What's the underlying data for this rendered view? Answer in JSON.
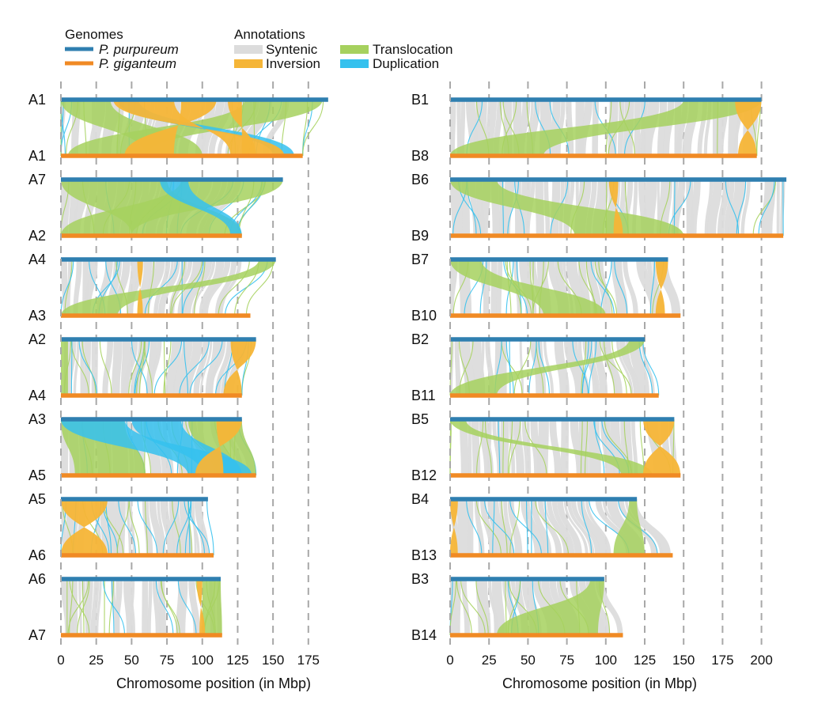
{
  "legend": {
    "genomes_title": "Genomes",
    "genomes": [
      {
        "name": "P. purpureum",
        "color": "#2f7fb0"
      },
      {
        "name": "P. giganteum",
        "color": "#f08a24"
      }
    ],
    "annotations_title": "Annotations",
    "annotations": [
      {
        "name": "Syntenic",
        "color": "#dcdcdc"
      },
      {
        "name": "Inversion",
        "color": "#f5b537"
      },
      {
        "name": "Translocation",
        "color": "#a6d15e"
      },
      {
        "name": "Duplication",
        "color": "#35c1ee"
      }
    ]
  },
  "chart_data": [
    {
      "type": "synteny",
      "xlabel": "Chromosome position (in Mbp)",
      "xlim": [
        0,
        190
      ],
      "ticks": [
        0,
        25,
        50,
        75,
        100,
        125,
        150,
        175
      ],
      "pairs": [
        {
          "top": "A1",
          "bottom": "A1",
          "top_len": 189,
          "bottom_len": 171,
          "inversions": [
            [
              37,
              80,
              120,
              158
            ],
            [
              85,
              110,
              45,
              80
            ],
            [
              118,
              128,
              128,
              138
            ]
          ],
          "translocations": [
            [
              0,
              35,
              60,
              100
            ],
            [
              130,
              185,
              5,
              60
            ]
          ],
          "duplications": [
            [
              40,
              55,
              150,
              165
            ]
          ]
        },
        {
          "top": "A7",
          "bottom": "A2",
          "top_len": 157,
          "bottom_len": 128,
          "inversions": [],
          "translocations": [
            [
              0,
              75,
              50,
              128
            ],
            [
              85,
              157,
              0,
              50
            ]
          ],
          "duplications": [
            [
              70,
              90,
              120,
              128
            ]
          ]
        },
        {
          "top": "A4",
          "bottom": "A3",
          "top_len": 152,
          "bottom_len": 134,
          "inversions": [
            [
              54,
              58,
              54,
              58
            ]
          ],
          "translocations": [
            [
              140,
              152,
              0,
              40
            ]
          ],
          "duplications": []
        },
        {
          "top": "A2",
          "bottom": "A4",
          "top_len": 138,
          "bottom_len": 128,
          "inversions": [
            [
              120,
              138,
              115,
              128
            ]
          ],
          "translocations": [
            [
              0,
              5,
              0,
              5
            ]
          ],
          "duplications": []
        },
        {
          "top": "A3",
          "bottom": "A5",
          "top_len": 128,
          "bottom_len": 138,
          "inversions": [
            [
              110,
              128,
              95,
              115
            ]
          ],
          "translocations": [
            [
              0,
              45,
              10,
              60
            ],
            [
              90,
              128,
              110,
              138
            ]
          ],
          "duplications": [
            [
              0,
              45,
              90,
              135
            ],
            [
              50,
              85,
              100,
              128
            ]
          ]
        },
        {
          "top": "A5",
          "bottom": "A6",
          "top_len": 104,
          "bottom_len": 108,
          "inversions": [
            [
              0,
              33,
              0,
              33
            ]
          ],
          "translocations": [],
          "duplications": []
        },
        {
          "top": "A6",
          "bottom": "A7",
          "top_len": 113,
          "bottom_len": 114,
          "inversions": [
            [
              96,
              100,
              98,
              102
            ]
          ],
          "translocations": [
            [
              100,
              113,
              100,
              114
            ]
          ],
          "duplications": []
        }
      ]
    },
    {
      "type": "synteny",
      "xlabel": "Chromosome position (in Mbp)",
      "xlim": [
        0,
        215
      ],
      "ticks": [
        0,
        25,
        50,
        75,
        100,
        125,
        150,
        175,
        200
      ],
      "pairs": [
        {
          "top": "B1",
          "bottom": "B8",
          "top_len": 200,
          "bottom_len": 197,
          "inversions": [
            [
              183,
              200,
              185,
              197
            ]
          ],
          "translocations": [
            [
              150,
              200,
              0,
              60
            ]
          ],
          "duplications": []
        },
        {
          "top": "B6",
          "bottom": "B9",
          "top_len": 216,
          "bottom_len": 214,
          "inversions": [
            [
              102,
              108,
              105,
              111
            ]
          ],
          "translocations": [
            [
              0,
              30,
              80,
              150
            ]
          ],
          "duplications": []
        },
        {
          "top": "B7",
          "bottom": "B10",
          "top_len": 140,
          "bottom_len": 148,
          "inversions": [
            [
              132,
              140,
              132,
              138
            ]
          ],
          "translocations": [
            [
              0,
              20,
              60,
              100
            ]
          ],
          "duplications": []
        },
        {
          "top": "B2",
          "bottom": "B11",
          "top_len": 125,
          "bottom_len": 134,
          "inversions": [],
          "translocations": [
            [
              115,
              125,
              0,
              30
            ]
          ],
          "duplications": []
        },
        {
          "top": "B5",
          "bottom": "B12",
          "top_len": 144,
          "bottom_len": 148,
          "inversions": [
            [
              124,
              144,
              124,
              148
            ]
          ],
          "translocations": [
            [
              0,
              10,
              110,
              130
            ]
          ],
          "duplications": []
        },
        {
          "top": "B4",
          "bottom": "B13",
          "top_len": 120,
          "bottom_len": 143,
          "inversions": [
            [
              0,
              5,
              0,
              5
            ]
          ],
          "translocations": [
            [
              115,
              120,
              105,
              125
            ]
          ],
          "duplications": []
        },
        {
          "top": "B3",
          "bottom": "B14",
          "top_len": 99,
          "bottom_len": 111,
          "inversions": [],
          "translocations": [
            [
              90,
              99,
              30,
              95
            ]
          ],
          "duplications": []
        }
      ]
    }
  ]
}
